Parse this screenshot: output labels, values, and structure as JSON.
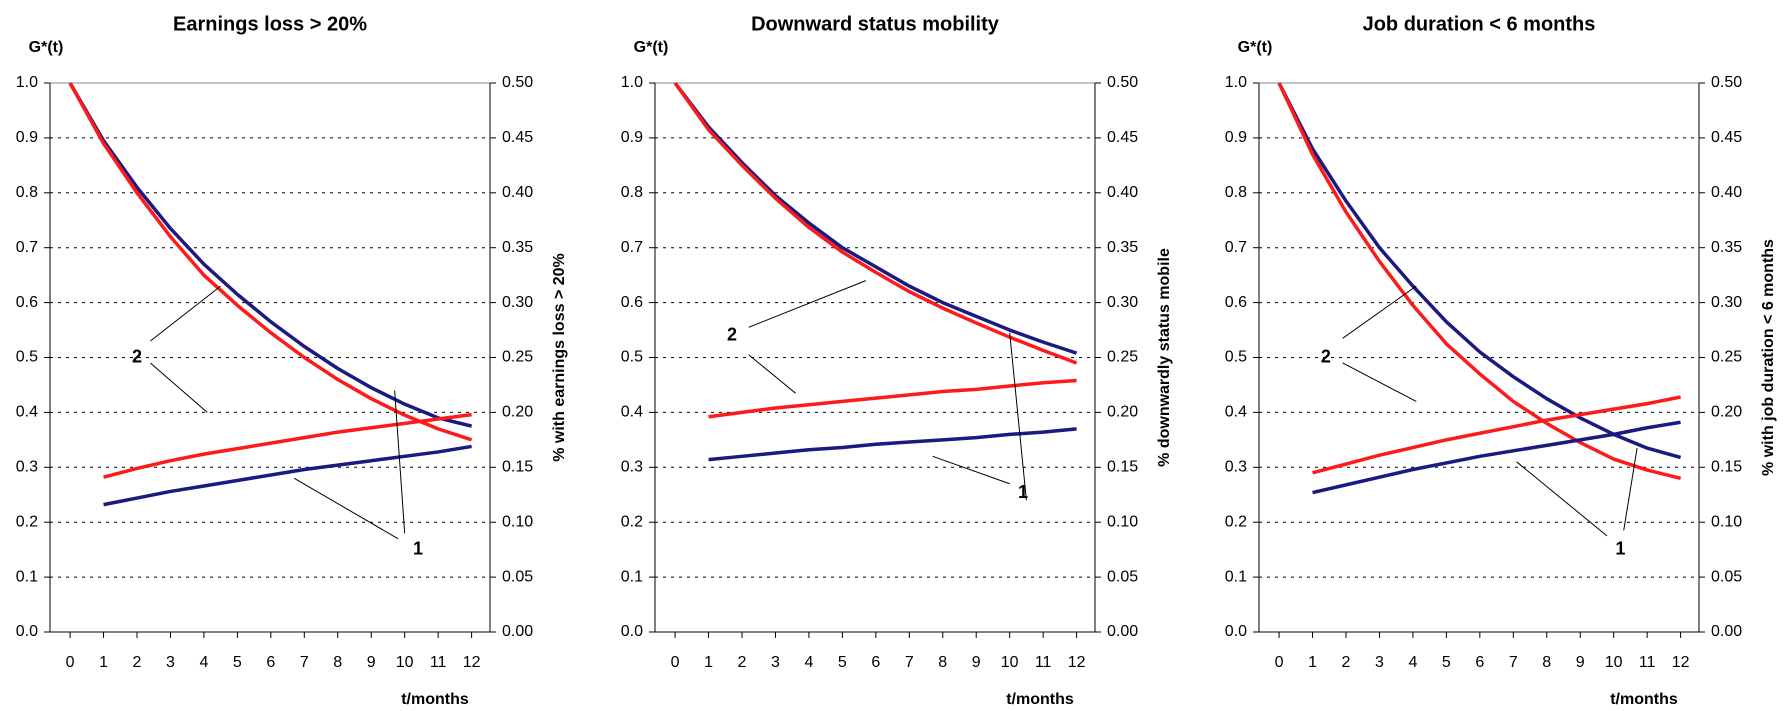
{
  "chart_data": [
    {
      "type": "line",
      "title": "Earnings loss > 20%",
      "ylabel": "G*(t)",
      "xlabel": "t/months",
      "y2label": "% with earnings loss > 20%",
      "x": [
        0,
        1,
        2,
        3,
        4,
        5,
        6,
        7,
        8,
        9,
        10,
        11,
        12
      ],
      "xlim": [
        -0.6,
        12.55
      ],
      "ylim": [
        0,
        1
      ],
      "yticks": [
        {
          "value": 0,
          "label": "0.0"
        },
        0.1,
        0.2,
        0.3,
        0.4,
        0.5,
        0.6,
        0.7,
        0.8,
        0.9,
        {
          "value": 1,
          "label": "1.0"
        }
      ],
      "y2lim": [
        0,
        0.5
      ],
      "y2ticks": [
        {
          "value": 0,
          "label": "0.00"
        },
        0.05,
        {
          "value": 0.1,
          "label": "0.10"
        },
        0.15,
        {
          "value": 0.2,
          "label": "0.20"
        },
        0.25,
        {
          "value": 0.3,
          "label": "0.30"
        },
        0.35,
        {
          "value": 0.4,
          "label": "0.40"
        },
        0.45,
        {
          "value": 0.5,
          "label": "0.50"
        }
      ],
      "grid": true,
      "annotations": [
        "2",
        "1"
      ],
      "series": [
        {
          "color": "#1a1a80",
          "values": [
            1.0,
            0.895,
            0.81,
            0.735,
            0.67,
            0.615,
            0.565,
            0.52,
            0.48,
            0.445,
            0.415,
            0.39,
            0.375
          ]
        },
        {
          "color": "#ff1a1a",
          "values": [
            1.0,
            0.89,
            0.8,
            0.72,
            0.65,
            0.595,
            0.545,
            0.5,
            0.46,
            0.425,
            0.395,
            0.37,
            0.35
          ]
        },
        {
          "color": "#1a1a80",
          "axis": "y2",
          "values": [
            null,
            0.116,
            0.122,
            0.128,
            0.133,
            0.138,
            0.143,
            0.148,
            0.152,
            0.156,
            0.16,
            0.164,
            0.169
          ]
        },
        {
          "color": "#ff1a1a",
          "axis": "y2",
          "values": [
            null,
            0.141,
            0.149,
            0.156,
            0.162,
            0.167,
            0.172,
            0.177,
            0.182,
            0.186,
            0.19,
            0.194,
            0.198
          ]
        }
      ]
    },
    {
      "type": "line",
      "title": "Downward status mobility",
      "ylabel": "G*(t)",
      "xlabel": "t/months",
      "y2label": "% downwardly status mobile",
      "x": [
        0,
        1,
        2,
        3,
        4,
        5,
        6,
        7,
        8,
        9,
        10,
        11,
        12
      ],
      "xlim": [
        -0.6,
        12.55
      ],
      "ylim": [
        0,
        1
      ],
      "yticks": [
        {
          "value": 0,
          "label": "0.0"
        },
        0.1,
        0.2,
        0.3,
        0.4,
        0.5,
        0.6,
        0.7,
        0.8,
        0.9,
        {
          "value": 1,
          "label": "1.0"
        }
      ],
      "y2lim": [
        0,
        0.5
      ],
      "y2ticks": [
        {
          "value": 0,
          "label": "0.00"
        },
        0.05,
        {
          "value": 0.1,
          "label": "0.10"
        },
        0.15,
        {
          "value": 0.2,
          "label": "0.20"
        },
        0.25,
        {
          "value": 0.3,
          "label": "0.30"
        },
        0.35,
        {
          "value": 0.4,
          "label": "0.40"
        },
        0.45,
        {
          "value": 0.5,
          "label": "0.50"
        }
      ],
      "grid": true,
      "annotations": [
        "2",
        "1"
      ],
      "series": [
        {
          "color": "#1a1a80",
          "values": [
            1.0,
            0.92,
            0.855,
            0.795,
            0.745,
            0.7,
            0.665,
            0.63,
            0.6,
            0.575,
            0.55,
            0.528,
            0.508
          ]
        },
        {
          "color": "#ff1a1a",
          "values": [
            1.0,
            0.915,
            0.85,
            0.79,
            0.737,
            0.692,
            0.655,
            0.62,
            0.59,
            0.563,
            0.537,
            0.513,
            0.49
          ]
        },
        {
          "color": "#1a1a80",
          "axis": "y2",
          "values": [
            null,
            0.157,
            0.16,
            0.163,
            0.166,
            0.168,
            0.171,
            0.173,
            0.175,
            0.177,
            0.18,
            0.182,
            0.185
          ]
        },
        {
          "color": "#ff1a1a",
          "axis": "y2",
          "values": [
            null,
            0.196,
            0.2,
            0.204,
            0.207,
            0.21,
            0.213,
            0.216,
            0.219,
            0.221,
            0.224,
            0.227,
            0.229
          ]
        }
      ]
    },
    {
      "type": "line",
      "title": "Job duration < 6 months",
      "ylabel": "G*(t)",
      "xlabel": "t/months",
      "y2label": "% with job duration < 6 months",
      "x": [
        0,
        1,
        2,
        3,
        4,
        5,
        6,
        7,
        8,
        9,
        10,
        11,
        12
      ],
      "xlim": [
        -0.6,
        12.55
      ],
      "ylim": [
        0,
        1
      ],
      "yticks": [
        {
          "value": 0,
          "label": "0.0"
        },
        0.1,
        0.2,
        0.3,
        0.4,
        0.5,
        0.6,
        0.7,
        0.8,
        0.9,
        {
          "value": 1,
          "label": "1.0"
        }
      ],
      "y2lim": [
        0,
        0.5
      ],
      "y2ticks": [
        {
          "value": 0,
          "label": "0.00"
        },
        0.05,
        {
          "value": 0.1,
          "label": "0.10"
        },
        0.15,
        {
          "value": 0.2,
          "label": "0.20"
        },
        0.25,
        {
          "value": 0.3,
          "label": "0.30"
        },
        0.35,
        {
          "value": 0.4,
          "label": "0.40"
        },
        0.45,
        {
          "value": 0.5,
          "label": "0.50"
        }
      ],
      "grid": true,
      "annotations": [
        "2",
        "1"
      ],
      "series": [
        {
          "color": "#1a1a80",
          "values": [
            1.0,
            0.88,
            0.785,
            0.7,
            0.63,
            0.565,
            0.51,
            0.465,
            0.425,
            0.39,
            0.36,
            0.335,
            0.318
          ]
        },
        {
          "color": "#ff1a1a",
          "values": [
            1.0,
            0.87,
            0.765,
            0.675,
            0.595,
            0.525,
            0.47,
            0.42,
            0.38,
            0.345,
            0.315,
            0.295,
            0.28
          ]
        },
        {
          "color": "#1a1a80",
          "axis": "y2",
          "values": [
            null,
            0.127,
            0.134,
            0.141,
            0.148,
            0.154,
            0.16,
            0.165,
            0.17,
            0.175,
            0.18,
            0.186,
            0.191
          ]
        },
        {
          "color": "#ff1a1a",
          "axis": "y2",
          "values": [
            null,
            0.145,
            0.153,
            0.161,
            0.168,
            0.175,
            0.181,
            0.187,
            0.193,
            0.198,
            0.203,
            0.208,
            0.214
          ]
        }
      ]
    }
  ]
}
